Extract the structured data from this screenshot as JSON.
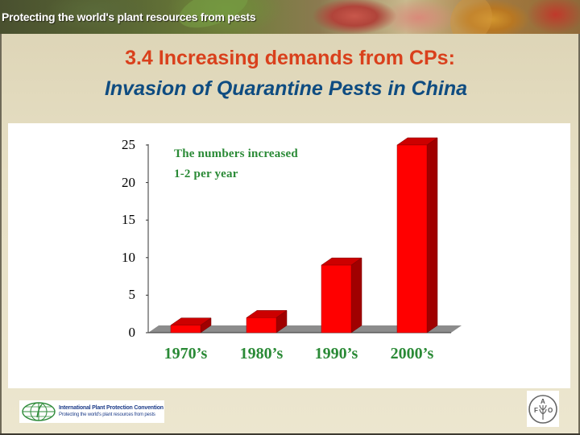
{
  "banner": {
    "tagline": "Protecting the world's plant resources from pests"
  },
  "slide": {
    "title_line1": "3.4 Increasing demands from CPs:",
    "title_line2": "Invasion of Quarantine Pests in China"
  },
  "colors": {
    "title_orange": "#d9401c",
    "subtitle_blue": "#0f4c81",
    "bar_front": "#ff0000",
    "bar_top": "#cc0000",
    "bar_side": "#a00000",
    "floor": "#8c8c8c",
    "label_green": "#2a8a36"
  },
  "chart_data": {
    "type": "bar",
    "style": "3d-column",
    "title": "",
    "xlabel": "",
    "ylabel": "",
    "categories": [
      "1970’s",
      "1980’s",
      "1990’s",
      "2000’s"
    ],
    "values": [
      1,
      2,
      9,
      25
    ],
    "ylim": [
      0,
      25
    ],
    "yticks": [
      0,
      5,
      10,
      15,
      20,
      25
    ],
    "ytick_labels": [
      "0",
      "5",
      "10",
      "15",
      "20",
      "25"
    ],
    "grid": false,
    "legend": null,
    "annotations": [
      "The numbers increased",
      "1-2 per year"
    ]
  },
  "footer": {
    "ippc_title": "International Plant Protection Convention",
    "ippc_subtitle": "Protecting the world's plant resources from pests",
    "fao_letters": [
      "F",
      "A",
      "O"
    ],
    "fao_motto": "FIAT PANIS"
  }
}
